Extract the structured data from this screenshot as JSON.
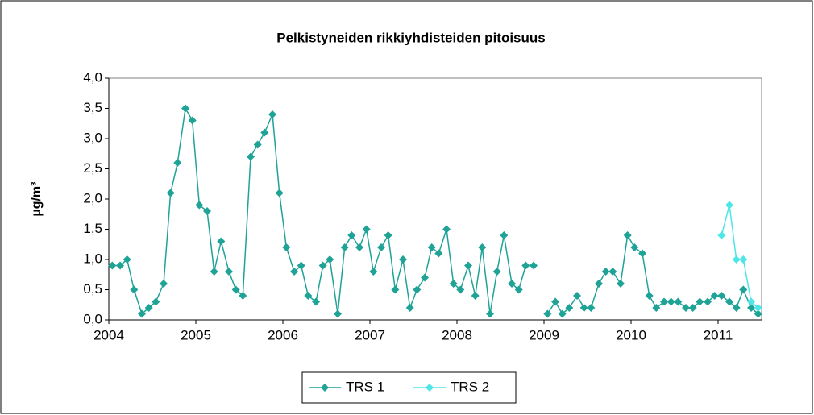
{
  "chart_data": {
    "type": "line",
    "title": "Pelkistyneiden rikkiyhdisteiden pitoisuus",
    "ylabel": "µg/m³",
    "x": [
      2004.04,
      2004.13,
      2004.21,
      2004.29,
      2004.38,
      2004.46,
      2004.54,
      2004.63,
      2004.71,
      2004.79,
      2004.88,
      2004.96,
      2005.04,
      2005.13,
      2005.21,
      2005.29,
      2005.38,
      2005.46,
      2005.54,
      2005.63,
      2005.71,
      2005.79,
      2005.88,
      2005.96,
      2006.04,
      2006.13,
      2006.21,
      2006.29,
      2006.38,
      2006.46,
      2006.54,
      2006.63,
      2006.71,
      2006.79,
      2006.88,
      2006.96,
      2007.04,
      2007.13,
      2007.21,
      2007.29,
      2007.38,
      2007.46,
      2007.54,
      2007.63,
      2007.71,
      2007.79,
      2007.88,
      2007.96,
      2008.04,
      2008.13,
      2008.21,
      2008.29,
      2008.38,
      2008.46,
      2008.54,
      2008.63,
      2008.71,
      2008.79,
      2008.88,
      2008.96,
      2009.04,
      2009.13,
      2009.21,
      2009.29,
      2009.38,
      2009.46,
      2009.54,
      2009.63,
      2009.71,
      2009.79,
      2009.88,
      2009.96,
      2010.04,
      2010.13,
      2010.21,
      2010.29,
      2010.38,
      2010.46,
      2010.54,
      2010.63,
      2010.71,
      2010.79,
      2010.88,
      2010.96,
      2011.04,
      2011.13,
      2011.21,
      2011.29,
      2011.38,
      2011.46
    ],
    "series": [
      {
        "name": "TRS 1",
        "color": "#1fa397",
        "values": [
          0.9,
          0.9,
          1.0,
          0.5,
          0.1,
          0.2,
          0.3,
          0.6,
          2.1,
          2.6,
          3.5,
          3.3,
          1.9,
          1.8,
          0.8,
          1.3,
          0.8,
          0.5,
          0.4,
          2.7,
          2.9,
          3.1,
          3.4,
          2.1,
          1.2,
          0.8,
          0.9,
          0.4,
          0.3,
          0.9,
          1.0,
          0.1,
          1.2,
          1.4,
          1.2,
          1.5,
          0.8,
          1.2,
          1.4,
          0.5,
          1.0,
          0.2,
          0.5,
          0.7,
          1.2,
          1.1,
          1.5,
          0.6,
          0.5,
          0.9,
          0.4,
          1.2,
          0.1,
          0.8,
          1.4,
          0.6,
          0.5,
          0.9,
          0.9,
          null,
          0.1,
          0.3,
          0.1,
          0.2,
          0.4,
          0.2,
          0.2,
          0.6,
          0.8,
          0.8,
          0.6,
          1.4,
          1.2,
          1.1,
          0.4,
          0.2,
          0.3,
          0.3,
          0.3,
          0.2,
          0.2,
          0.3,
          0.3,
          0.4,
          0.4,
          0.3,
          0.2,
          0.5,
          0.2,
          0.1
        ]
      },
      {
        "name": "TRS 2",
        "color": "#4ee6e6",
        "values": [
          null,
          null,
          null,
          null,
          null,
          null,
          null,
          null,
          null,
          null,
          null,
          null,
          null,
          null,
          null,
          null,
          null,
          null,
          null,
          null,
          null,
          null,
          null,
          null,
          null,
          null,
          null,
          null,
          null,
          null,
          null,
          null,
          null,
          null,
          null,
          null,
          null,
          null,
          null,
          null,
          null,
          null,
          null,
          null,
          null,
          null,
          null,
          null,
          null,
          null,
          null,
          null,
          null,
          null,
          null,
          null,
          null,
          null,
          null,
          null,
          null,
          null,
          null,
          null,
          null,
          null,
          null,
          null,
          null,
          null,
          null,
          null,
          null,
          null,
          null,
          null,
          null,
          null,
          null,
          null,
          null,
          null,
          null,
          null,
          1.4,
          1.9,
          1.0,
          1.0,
          0.3,
          0.2
        ]
      }
    ],
    "xlim": [
      2004,
      2011.5
    ],
    "xticks": [
      2004,
      2005,
      2006,
      2007,
      2008,
      2009,
      2010,
      2011
    ],
    "ylim": [
      0,
      4
    ],
    "yticks": [
      {
        "value": 0,
        "label": "0,0"
      },
      {
        "value": 0.5,
        "label": "0,5"
      },
      {
        "value": 1,
        "label": "1,0"
      },
      {
        "value": 1.5,
        "label": "1,5"
      },
      {
        "value": 2,
        "label": "2,0"
      },
      {
        "value": 2.5,
        "label": "2,5"
      },
      {
        "value": 3,
        "label": "3,0"
      },
      {
        "value": 3.5,
        "label": "3,5"
      },
      {
        "value": 4,
        "label": "4,0"
      }
    ],
    "grid": false,
    "legend": "bottom"
  }
}
